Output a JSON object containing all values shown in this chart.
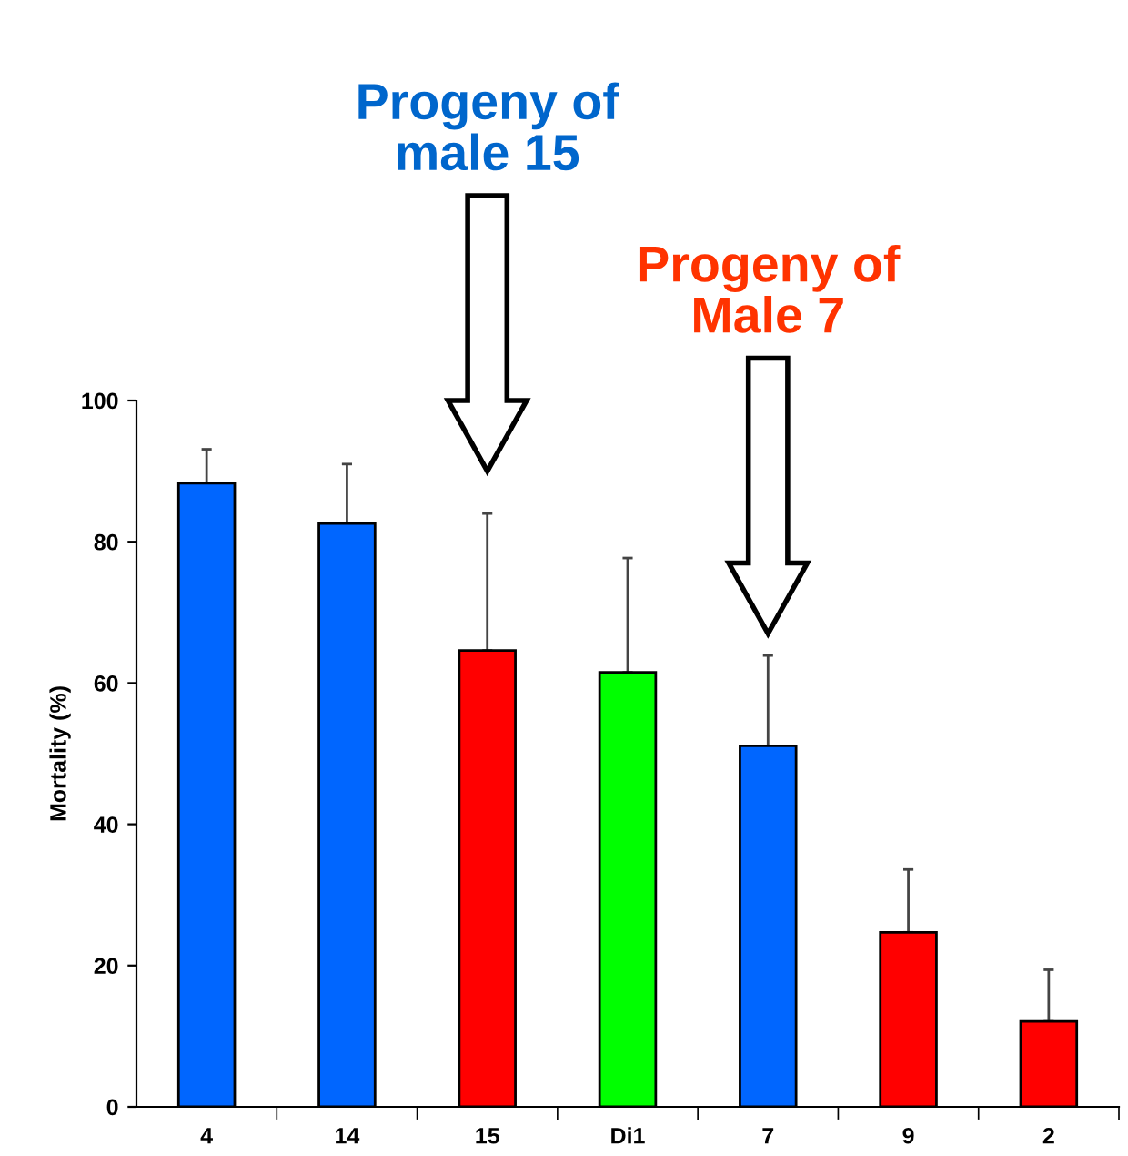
{
  "chart_data": {
    "type": "bar",
    "ylabel": "Mortality (%)",
    "categories": [
      "4",
      "14",
      "15",
      "Di1",
      "7",
      "9",
      "2"
    ],
    "values": [
      88.3,
      82.6,
      64.6,
      61.5,
      51.1,
      24.7,
      12.1
    ],
    "colors": [
      "#0066ff",
      "#0066ff",
      "#ff0000",
      "#00ff00",
      "#0066ff",
      "#ff0000",
      "#ff0000"
    ],
    "errors": [
      [
        88.3,
        93.1
      ],
      [
        82.6,
        91.0
      ],
      [
        64.6,
        84.0
      ],
      [
        61.5,
        77.7
      ],
      [
        51.1,
        63.9
      ],
      [
        24.7,
        33.6
      ],
      [
        12.1,
        19.4
      ]
    ],
    "ylim": [
      0,
      100
    ],
    "yticks": [
      0,
      20,
      40,
      60,
      80,
      100
    ],
    "grid": false,
    "legend": false,
    "annotations": [
      "Progeny of\nmale 15",
      "Progeny of\nMale 7"
    ]
  }
}
